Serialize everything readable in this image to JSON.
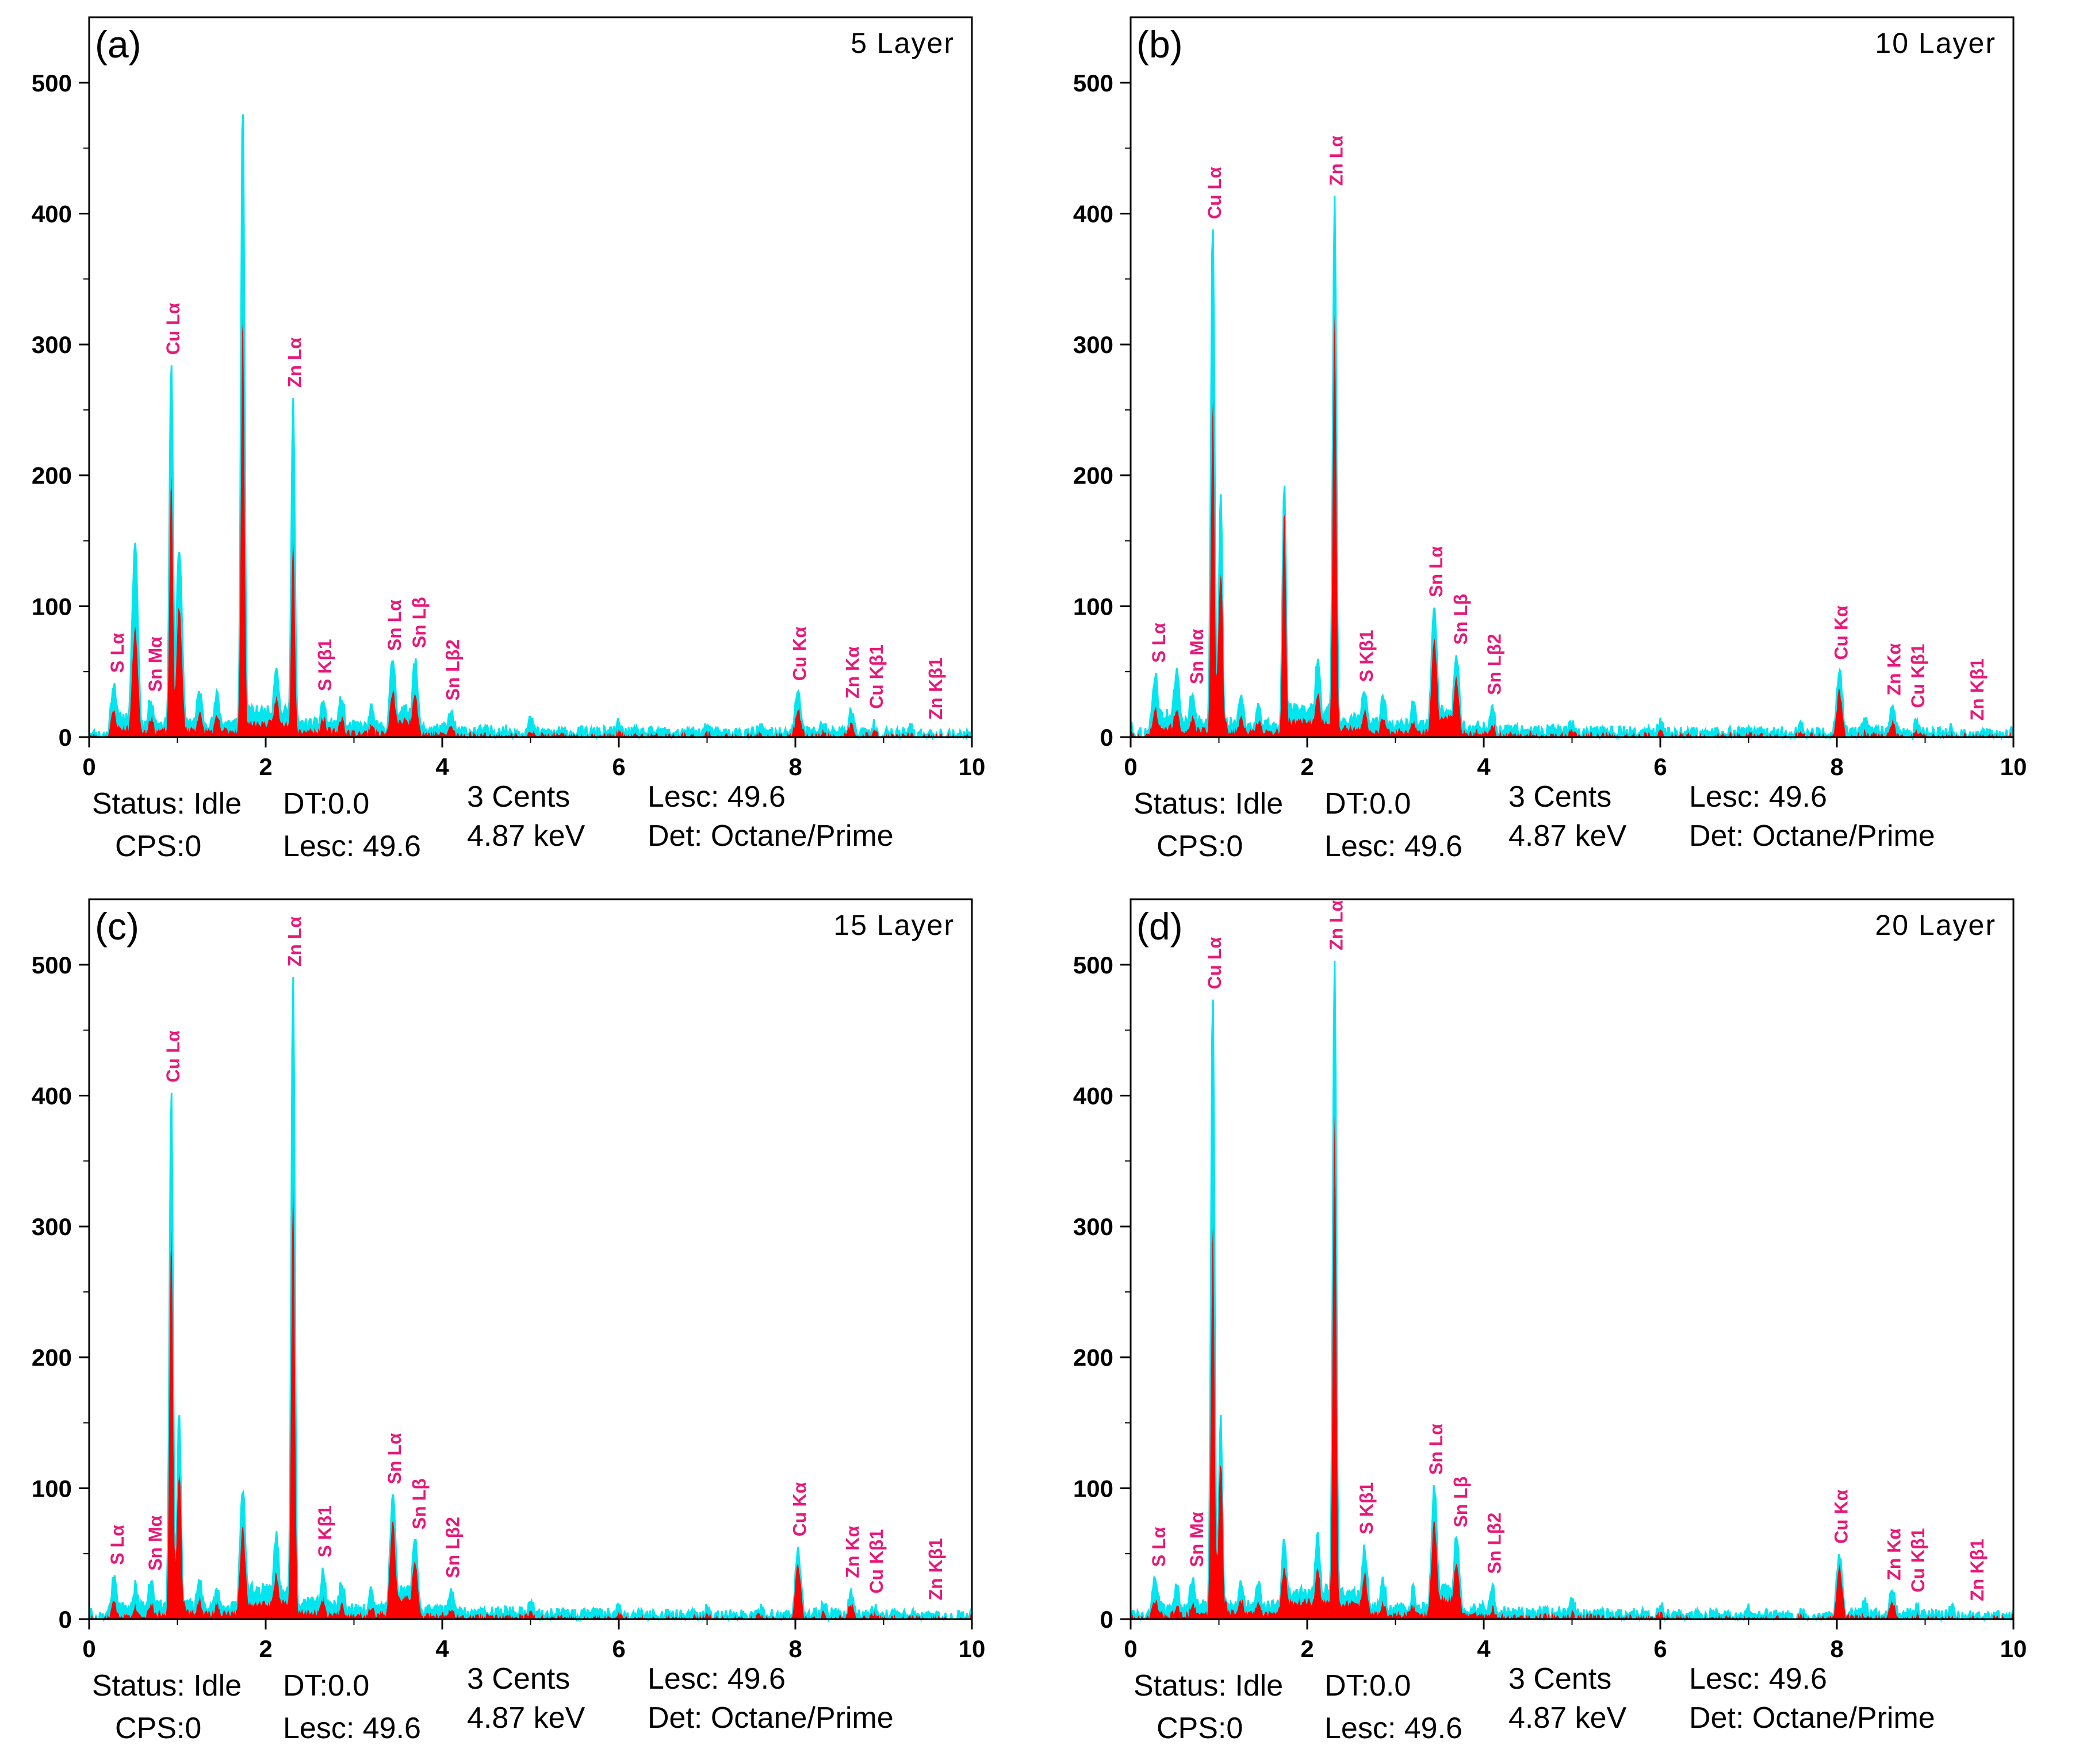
{
  "figure": {
    "description_free": true
  },
  "colors": {
    "signal": "#00e5ee",
    "fill": "#ff0000",
    "label": "#e8187a",
    "axis": "#000000"
  },
  "chart_data": [
    {
      "type": "area",
      "panel_label": "(a)",
      "title": "5 Layer",
      "xlabel": "",
      "ylabel": "",
      "xlim": [
        0,
        10
      ],
      "ylim": [
        0,
        550
      ],
      "xticks": [
        0,
        2,
        4,
        6,
        8,
        10
      ],
      "yticks": [
        0,
        100,
        200,
        300,
        400,
        500
      ],
      "series": [
        {
          "name": "signal",
          "x": [
            0,
            0.28,
            0.52,
            0.7,
            0.93,
            1.02,
            1.25,
            1.45,
            1.74,
            2.12,
            2.31,
            2.65,
            2.86,
            3.2,
            3.44,
            3.69,
            4.1,
            5.0,
            6.0,
            7.0,
            7.6,
            8.03,
            8.32,
            8.63,
            8.9,
            9.3,
            10
          ],
          "values": [
            5,
            42,
            148,
            30,
            290,
            145,
            35,
            32,
            490,
            55,
            258,
            28,
            30,
            22,
            60,
            58,
            18,
            13,
            10,
            9,
            8,
            36,
            12,
            20,
            10,
            7,
            5
          ]
        },
        {
          "name": "fill",
          "x": [
            0,
            0.28,
            0.52,
            0.7,
            0.93,
            1.02,
            1.25,
            1.45,
            1.74,
            2.12,
            2.31,
            2.65,
            2.86,
            3.2,
            3.44,
            3.69,
            4.1,
            5.0,
            6.0,
            7.0,
            7.6,
            8.03,
            8.32,
            8.63,
            8.9,
            9.3,
            10
          ],
          "values": [
            2,
            20,
            85,
            15,
            200,
            100,
            18,
            15,
            325,
            30,
            155,
            15,
            15,
            10,
            35,
            35,
            8,
            5,
            4,
            3,
            3,
            22,
            4,
            9,
            4,
            2,
            2
          ]
        }
      ],
      "annotations": [
        {
          "text": "S Lα",
          "x": 0.3
        },
        {
          "text": "Sn Mα",
          "x": 0.73
        },
        {
          "text": "Cu Lα",
          "x": 0.93
        },
        {
          "text": "Zn Lα",
          "x": 2.31
        },
        {
          "text": "S Kβ1",
          "x": 2.65
        },
        {
          "text": "Sn Lα",
          "x": 3.44
        },
        {
          "text": "Sn Lβ",
          "x": 3.72
        },
        {
          "text": "Sn Lβ2",
          "x": 4.1
        },
        {
          "text": "Cu Kα",
          "x": 8.03
        },
        {
          "text": "Zn Kα",
          "x": 8.63
        },
        {
          "text": "Cu Kβ1",
          "x": 8.9
        },
        {
          "text": "Zn Kβ1",
          "x": 9.57
        }
      ],
      "status": {
        "status": "Status: Idle",
        "cps": "CPS:0",
        "dt": "DT:0.0",
        "lesc1": "Lesc: 49.6",
        "cents": "3 Cents",
        "kev": "4.87 keV",
        "lesc2": "Lesc: 49.6",
        "det": "Det: Octane/Prime"
      }
    },
    {
      "type": "area",
      "panel_label": "(b)",
      "title": "10 Layer",
      "xlabel": "",
      "ylabel": "",
      "xlim": [
        0,
        10
      ],
      "ylim": [
        0,
        550
      ],
      "xticks": [
        0,
        2,
        4,
        6,
        8,
        10
      ],
      "yticks": [
        0,
        100,
        200,
        300,
        400,
        500
      ],
      "series": [
        {
          "name": "signal",
          "x": [
            0,
            0.28,
            0.52,
            0.7,
            0.93,
            1.02,
            1.25,
            1.45,
            1.74,
            2.12,
            2.31,
            2.65,
            2.86,
            3.2,
            3.44,
            3.69,
            4.1,
            5.0,
            6.0,
            7.0,
            7.6,
            8.03,
            8.32,
            8.63,
            8.9,
            9.3,
            10
          ],
          "values": [
            8,
            48,
            50,
            35,
            398,
            185,
            30,
            25,
            198,
            60,
            410,
            38,
            30,
            25,
            95,
            62,
            22,
            14,
            10,
            9,
            9,
            50,
            12,
            22,
            10,
            8,
            5
          ]
        },
        {
          "name": "fill",
          "x": [
            0,
            0.28,
            0.52,
            0.7,
            0.93,
            1.02,
            1.25,
            1.45,
            1.74,
            2.12,
            2.31,
            2.65,
            2.86,
            3.2,
            3.44,
            3.69,
            4.1,
            5.0,
            6.0,
            7.0,
            7.6,
            8.03,
            8.32,
            8.63,
            8.9,
            9.3,
            10
          ],
          "values": [
            3,
            22,
            22,
            15,
            260,
            125,
            15,
            12,
            175,
            35,
            325,
            20,
            15,
            12,
            75,
            45,
            10,
            6,
            4,
            3,
            3,
            35,
            4,
            12,
            4,
            2,
            2
          ]
        }
      ],
      "annotations": [
        {
          "text": "S Lα",
          "x": 0.3
        },
        {
          "text": "Sn Mα",
          "x": 0.73
        },
        {
          "text": "Cu Lα",
          "x": 0.93
        },
        {
          "text": "Zn Lα",
          "x": 2.31
        },
        {
          "text": "S Kβ1",
          "x": 2.65
        },
        {
          "text": "Sn Lα",
          "x": 3.44
        },
        {
          "text": "Sn Lβ",
          "x": 3.72
        },
        {
          "text": "Sn Lβ2",
          "x": 4.1
        },
        {
          "text": "Cu Kα",
          "x": 8.03
        },
        {
          "text": "Zn Kα",
          "x": 8.63
        },
        {
          "text": "Cu Kβ1",
          "x": 8.9
        },
        {
          "text": "Zn Kβ1",
          "x": 9.57
        }
      ],
      "status": {
        "status": "Status: Idle",
        "cps": "CPS:0",
        "dt": "DT:0.0",
        "lesc1": "Lesc: 49.6",
        "cents": "3 Cents",
        "kev": "4.87 keV",
        "lesc2": "Lesc: 49.6",
        "det": "Det: Octane/Prime"
      }
    },
    {
      "type": "area",
      "panel_label": "(c)",
      "title": "15 Layer",
      "xlabel": "",
      "ylabel": "",
      "xlim": [
        0,
        10
      ],
      "ylim": [
        0,
        550
      ],
      "xticks": [
        0,
        2,
        4,
        6,
        8,
        10
      ],
      "yticks": [
        0,
        100,
        200,
        300,
        400,
        500
      ],
      "series": [
        {
          "name": "signal",
          "x": [
            0,
            0.28,
            0.52,
            0.7,
            0.93,
            1.02,
            1.25,
            1.45,
            1.74,
            2.12,
            2.31,
            2.65,
            2.86,
            3.2,
            3.44,
            3.69,
            4.1,
            5.0,
            6.0,
            7.0,
            7.6,
            8.03,
            8.32,
            8.63,
            8.9,
            9.3,
            10
          ],
          "values": [
            5,
            30,
            25,
            30,
            405,
            160,
            30,
            25,
            98,
            65,
            495,
            35,
            28,
            22,
            95,
            65,
            20,
            14,
            10,
            8,
            8,
            52,
            12,
            20,
            10,
            7,
            5
          ]
        },
        {
          "name": "fill",
          "x": [
            0,
            0.28,
            0.52,
            0.7,
            0.93,
            1.02,
            1.25,
            1.45,
            1.74,
            2.12,
            2.31,
            2.65,
            2.86,
            3.2,
            3.44,
            3.69,
            4.1,
            5.0,
            6.0,
            7.0,
            7.6,
            8.03,
            8.32,
            8.63,
            8.9,
            9.3,
            10
          ],
          "values": [
            2,
            12,
            10,
            12,
            300,
            110,
            15,
            12,
            70,
            35,
            335,
            15,
            12,
            10,
            75,
            45,
            8,
            5,
            4,
            3,
            3,
            42,
            4,
            12,
            4,
            2,
            2
          ]
        }
      ],
      "annotations": [
        {
          "text": "S Lα",
          "x": 0.3
        },
        {
          "text": "Sn Mα",
          "x": 0.73
        },
        {
          "text": "Cu Lα",
          "x": 0.93
        },
        {
          "text": "Zn Lα",
          "x": 2.31
        },
        {
          "text": "S Kβ1",
          "x": 2.65
        },
        {
          "text": "Sn Lα",
          "x": 3.44
        },
        {
          "text": "Sn Lβ",
          "x": 3.72
        },
        {
          "text": "Sn Lβ2",
          "x": 4.1
        },
        {
          "text": "Cu Kα",
          "x": 8.03
        },
        {
          "text": "Zn Kα",
          "x": 8.63
        },
        {
          "text": "Cu Kβ1",
          "x": 8.9
        },
        {
          "text": "Zn Kβ1",
          "x": 9.57
        }
      ],
      "status": {
        "status": "Status: Idle",
        "cps": "CPS:0",
        "dt": "DT:0.0",
        "lesc1": "Lesc: 49.6",
        "cents": "3 Cents",
        "kev": "4.87 keV",
        "lesc2": "Lesc: 49.6",
        "det": "Det: Octane/Prime"
      }
    },
    {
      "type": "area",
      "panel_label": "(d)",
      "title": "20 Layer",
      "xlabel": "",
      "ylabel": "",
      "xlim": [
        0,
        10
      ],
      "ylim": [
        0,
        550
      ],
      "xticks": [
        0,
        2,
        4,
        6,
        8,
        10
      ],
      "yticks": [
        0,
        100,
        200,
        300,
        400,
        500
      ],
      "series": [
        {
          "name": "signal",
          "x": [
            0,
            0.28,
            0.52,
            0.7,
            0.93,
            1.02,
            1.25,
            1.45,
            1.74,
            2.12,
            2.31,
            2.65,
            2.86,
            3.2,
            3.44,
            3.69,
            4.1,
            5.0,
            6.0,
            7.0,
            7.6,
            8.03,
            8.32,
            8.63,
            8.9,
            9.3,
            10
          ],
          "values": [
            5,
            32,
            25,
            30,
            480,
            155,
            30,
            28,
            58,
            62,
            505,
            55,
            28,
            22,
            100,
            62,
            22,
            14,
            10,
            8,
            8,
            50,
            12,
            22,
            10,
            8,
            5
          ]
        },
        {
          "name": "fill",
          "x": [
            0,
            0.28,
            0.52,
            0.7,
            0.93,
            1.02,
            1.25,
            1.45,
            1.74,
            2.12,
            2.31,
            2.65,
            2.86,
            3.2,
            3.44,
            3.69,
            4.1,
            5.0,
            6.0,
            7.0,
            7.6,
            8.03,
            8.32,
            8.63,
            8.9,
            9.3,
            10
          ],
          "values": [
            2,
            14,
            10,
            12,
            305,
            120,
            15,
            14,
            40,
            38,
            385,
            35,
            12,
            10,
            75,
            45,
            8,
            5,
            4,
            3,
            3,
            40,
            4,
            14,
            4,
            2,
            2
          ]
        }
      ],
      "annotations": [
        {
          "text": "S Lα",
          "x": 0.3
        },
        {
          "text": "Sn Mα",
          "x": 0.73
        },
        {
          "text": "Cu Lα",
          "x": 0.93
        },
        {
          "text": "Zn Lα",
          "x": 2.31
        },
        {
          "text": "S Kβ1",
          "x": 2.65
        },
        {
          "text": "Sn Lα",
          "x": 3.44
        },
        {
          "text": "Sn Lβ",
          "x": 3.72
        },
        {
          "text": "Sn Lβ2",
          "x": 4.1
        },
        {
          "text": "Cu Kα",
          "x": 8.03
        },
        {
          "text": "Zn Kα",
          "x": 8.63
        },
        {
          "text": "Cu Kβ1",
          "x": 8.9
        },
        {
          "text": "Zn Kβ1",
          "x": 9.57
        }
      ],
      "status": {
        "status": "Status: Idle",
        "cps": "CPS:0",
        "dt": "DT:0.0",
        "lesc1": "Lesc: 49.6",
        "cents": "3 Cents",
        "kev": "4.87 keV",
        "lesc2": "Lesc: 49.6",
        "det": "Det: Octane/Prime"
      }
    }
  ]
}
